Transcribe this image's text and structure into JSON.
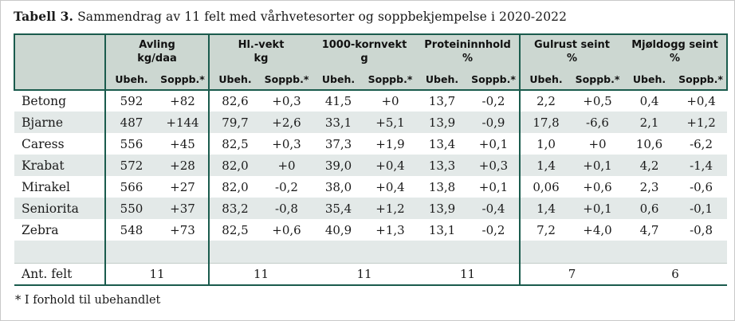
{
  "title": {
    "label": "Tabell 3.",
    "text": " Sammendrag av 11 felt med vårhvetesorter og soppbekjempelse i 2020-2022"
  },
  "table": {
    "groups": [
      {
        "name": "Avling",
        "unit": "kg/daa"
      },
      {
        "name": "Hl.-vekt",
        "unit": "kg"
      },
      {
        "name": "1000-kornvekt",
        "unit": "g"
      },
      {
        "name": "Proteininnhold",
        "unit": "%"
      },
      {
        "name": "Gulrust seint",
        "unit": "%"
      },
      {
        "name": "Mjøldogg seint",
        "unit": "%"
      }
    ],
    "subheaders": [
      "Ubeh.",
      "Soppb.*"
    ],
    "rows": [
      {
        "name": "Betong",
        "values": [
          "592",
          "+82",
          "82,6",
          "+0,3",
          "41,5",
          "+0",
          "13,7",
          "-0,2",
          "2,2",
          "+0,5",
          "0,4",
          "+0,4"
        ]
      },
      {
        "name": "Bjarne",
        "values": [
          "487",
          "+144",
          "79,7",
          "+2,6",
          "33,1",
          "+5,1",
          "13,9",
          "-0,9",
          "17,8",
          "-6,6",
          "2,1",
          "+1,2"
        ]
      },
      {
        "name": "Caress",
        "values": [
          "556",
          "+45",
          "82,5",
          "+0,3",
          "37,3",
          "+1,9",
          "13,4",
          "+0,1",
          "1,0",
          "+0",
          "10,6",
          "-6,2"
        ]
      },
      {
        "name": "Krabat",
        "values": [
          "572",
          "+28",
          "82,0",
          "+0",
          "39,0",
          "+0,4",
          "13,3",
          "+0,3",
          "1,4",
          "+0,1",
          "4,2",
          "-1,4"
        ]
      },
      {
        "name": "Mirakel",
        "values": [
          "566",
          "+27",
          "82,0",
          "-0,2",
          "38,0",
          "+0,4",
          "13,8",
          "+0,1",
          "0,06",
          "+0,6",
          "2,3",
          "-0,6"
        ]
      },
      {
        "name": "Seniorita",
        "values": [
          "550",
          "+37",
          "83,2",
          "-0,8",
          "35,4",
          "+1,2",
          "13,9",
          "-0,4",
          "1,4",
          "+0,1",
          "0,6",
          "-0,1"
        ]
      },
      {
        "name": "Zebra",
        "values": [
          "548",
          "+73",
          "82,5",
          "+0,6",
          "40,9",
          "+1,3",
          "13,1",
          "-0,2",
          "7,2",
          "+4,0",
          "4,7",
          "-0,8"
        ]
      }
    ],
    "footer": {
      "label": "Ant. felt",
      "values": [
        "11",
        "11",
        "11",
        "11",
        "7",
        "6"
      ]
    }
  },
  "footnote": "* I forhold til ubehandlet",
  "colors": {
    "border": "#1a5b4d",
    "header_bg": "#ccd7d1",
    "alt_row_bg": "#e3e9e8"
  }
}
